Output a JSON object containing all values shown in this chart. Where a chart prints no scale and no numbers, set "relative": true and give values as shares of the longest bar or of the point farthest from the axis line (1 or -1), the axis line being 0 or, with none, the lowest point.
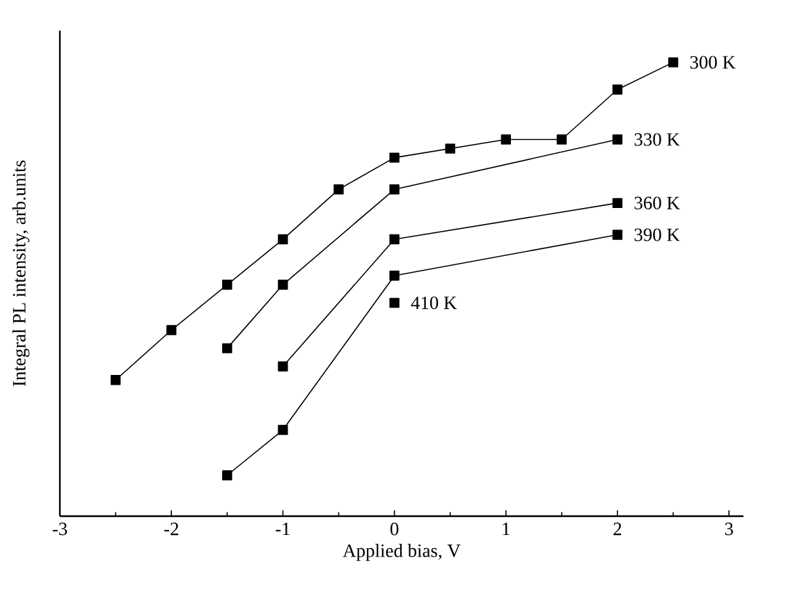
{
  "chart_data": {
    "type": "line",
    "relative": true,
    "xlabel": "Applied bias, V",
    "ylabel": "Integral PL intensity, arb.units",
    "xlim": [
      -3,
      3.13
    ],
    "xticks": [
      -3,
      -2,
      -1,
      0,
      1,
      2,
      3
    ],
    "marker": "square",
    "line_style": "solid",
    "series": [
      {
        "name": "300 K",
        "color": "#000000",
        "x": [
          -2.5,
          -2,
          -1.5,
          -1,
          -0.5,
          0,
          0.5,
          1,
          1.5,
          2,
          2.5
        ],
        "values": [
          0.3,
          0.41,
          0.51,
          0.61,
          0.72,
          0.79,
          0.81,
          0.83,
          0.83,
          0.94,
          1.0
        ]
      },
      {
        "name": "330 K",
        "color": "#000000",
        "x": [
          -1.5,
          -1,
          0,
          2
        ],
        "values": [
          0.37,
          0.51,
          0.72,
          0.83
        ]
      },
      {
        "name": "360 K",
        "color": "#000000",
        "x": [
          -1,
          0,
          2
        ],
        "values": [
          0.33,
          0.61,
          0.69
        ]
      },
      {
        "name": "390 K",
        "color": "#000000",
        "x": [
          -1.5,
          -1,
          0,
          2
        ],
        "values": [
          0.09,
          0.19,
          0.53,
          0.62
        ]
      },
      {
        "name": "410 K",
        "color": "#000000",
        "x": [
          0
        ],
        "values": [
          0.47
        ]
      }
    ]
  }
}
